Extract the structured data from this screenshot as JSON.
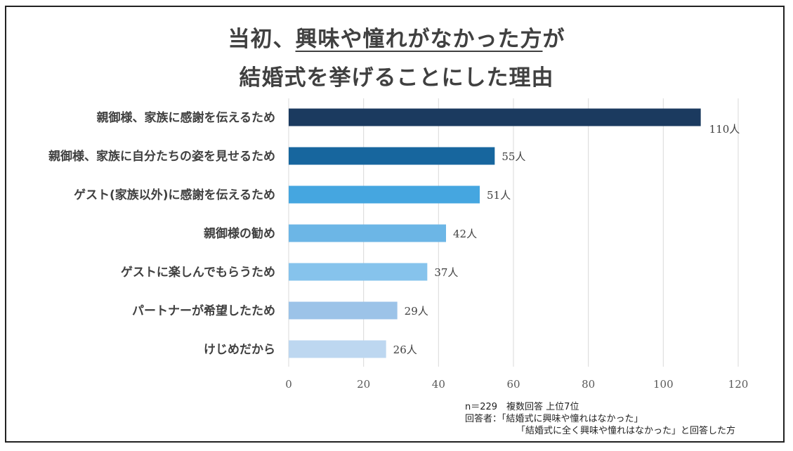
{
  "title": {
    "line1_prefix": "当初、",
    "line1_underlined": "興味や憧れがなかった方",
    "line1_suffix": "が",
    "line2": "結婚式を挙げることにした理由"
  },
  "chart_data": {
    "type": "bar",
    "orientation": "horizontal",
    "categories": [
      "親御様、家族に感謝を伝えるため",
      "親御様、家族に自分たちの姿を見せるため",
      "ゲスト(家族以外)に感謝を伝えるため",
      "親御様の勧め",
      "ゲストに楽しんでもらうため",
      "パートナーが希望したため",
      "けじめだから"
    ],
    "values": [
      110,
      55,
      51,
      42,
      37,
      29,
      26
    ],
    "value_labels": [
      "110人",
      "55人",
      "51人",
      "42人",
      "37人",
      "29人",
      "26人"
    ],
    "colors": [
      "#1b3a5f",
      "#17669e",
      "#45a6e0",
      "#6cb6e6",
      "#86c3ec",
      "#9cc3e8",
      "#bdd7f0"
    ],
    "xlim": [
      0,
      120
    ],
    "xticks": [
      0,
      20,
      40,
      60,
      80,
      100,
      120
    ],
    "xtick_labels": [
      "0",
      "20",
      "40",
      "60",
      "80",
      "100",
      "120"
    ],
    "grid": true,
    "xlabel": "",
    "ylabel": ""
  },
  "footnote": {
    "line1": "n＝229　複数回答 上位7位",
    "line2": "回答者：「結婚式に興味や憧れはなかった」",
    "line3": "「結婚式に全く興味や憧れはなかった」と回答した方"
  }
}
